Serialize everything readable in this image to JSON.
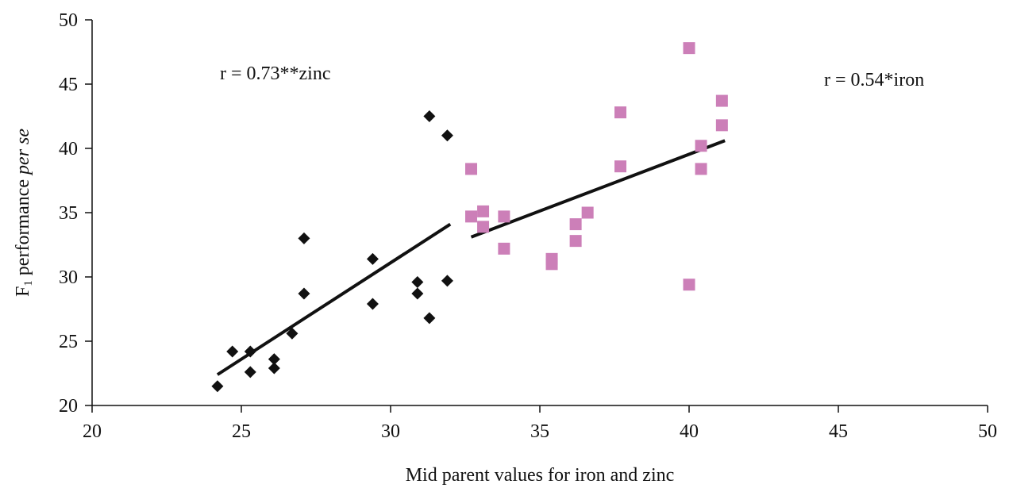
{
  "chart_data": {
    "type": "scatter",
    "title": "",
    "xlabel": "Mid parent values for iron and zinc",
    "ylabel": {
      "prefix": "F",
      "subscript": "1",
      "middle": " performance ",
      "italic": "per se"
    },
    "xlim": [
      20,
      50
    ],
    "ylim": [
      20,
      50
    ],
    "xticks": [
      "20",
      "25",
      "30",
      "35",
      "40",
      "45",
      "50"
    ],
    "yticks": [
      "20",
      "25",
      "30",
      "35",
      "40",
      "45",
      "50"
    ],
    "grid": false,
    "legend": "none",
    "series": [
      {
        "marker": "diamond",
        "color": "#111111",
        "points": [
          [
            24.2,
            21.5
          ],
          [
            24.7,
            24.2
          ],
          [
            25.3,
            24.2
          ],
          [
            25.3,
            22.6
          ],
          [
            26.1,
            23.6
          ],
          [
            26.1,
            22.9
          ],
          [
            26.7,
            25.6
          ],
          [
            27.1,
            33.0
          ],
          [
            27.1,
            28.7
          ],
          [
            29.4,
            31.4
          ],
          [
            29.4,
            27.9
          ],
          [
            30.9,
            29.6
          ],
          [
            30.9,
            28.7
          ],
          [
            31.3,
            42.5
          ],
          [
            31.3,
            26.8
          ],
          [
            31.9,
            41.0
          ],
          [
            31.9,
            29.7
          ]
        ],
        "trendline": [
          [
            24.2,
            22.4
          ],
          [
            32.0,
            34.1
          ]
        ]
      },
      {
        "marker": "square",
        "color": "#cc7fb8",
        "points": [
          [
            32.7,
            38.4
          ],
          [
            32.7,
            34.7
          ],
          [
            33.1,
            35.1
          ],
          [
            33.1,
            33.9
          ],
          [
            33.8,
            34.7
          ],
          [
            33.8,
            32.2
          ],
          [
            35.4,
            31.4
          ],
          [
            35.4,
            31.0
          ],
          [
            36.2,
            34.1
          ],
          [
            36.2,
            32.8
          ],
          [
            36.6,
            35.0
          ],
          [
            37.7,
            42.8
          ],
          [
            37.7,
            38.6
          ],
          [
            40.0,
            47.8
          ],
          [
            40.0,
            29.4
          ],
          [
            40.4,
            40.2
          ],
          [
            40.4,
            38.4
          ],
          [
            41.1,
            43.7
          ],
          [
            41.1,
            41.8
          ]
        ],
        "trendline": [
          [
            32.7,
            33.1
          ],
          [
            41.2,
            40.6
          ]
        ]
      }
    ],
    "annotations": [
      {
        "text": "r = 0.73**zinc"
      },
      {
        "text": "r = 0.54*iron"
      }
    ]
  }
}
